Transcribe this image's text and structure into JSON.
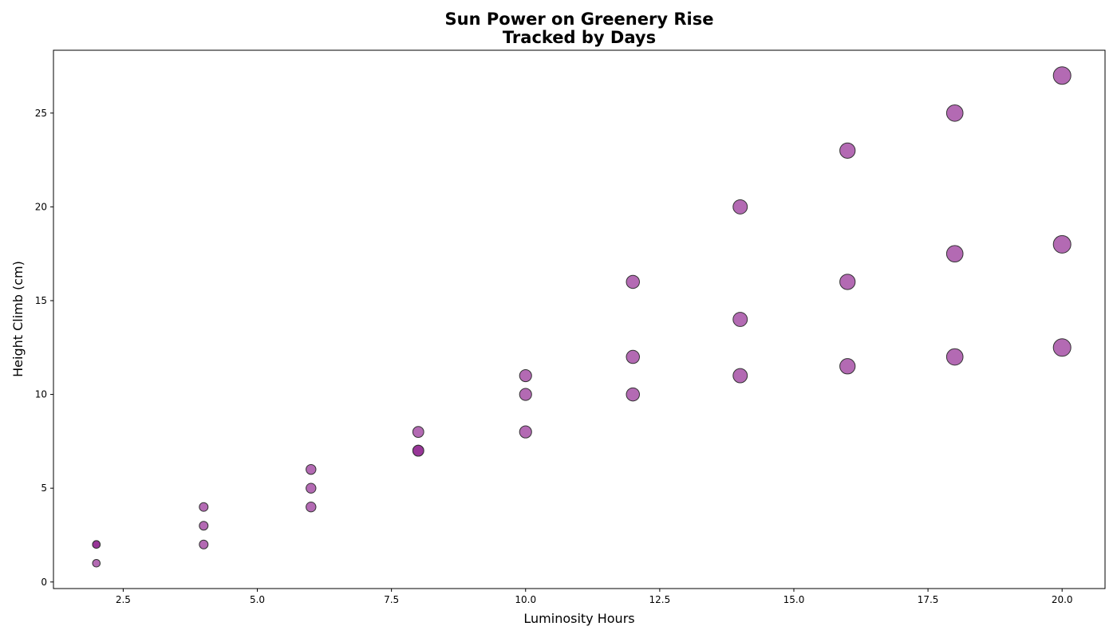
{
  "chart_data": {
    "type": "scatter",
    "title_lines": [
      "Sun Power on Greenery Rise",
      "Tracked by Days"
    ],
    "xlabel": "Luminosity Hours",
    "ylabel": "Height Climb (cm)",
    "xlim": [
      1.2,
      20.8
    ],
    "ylim": [
      -0.35,
      28.35
    ],
    "xticks": [
      2.5,
      5.0,
      7.5,
      10.0,
      12.5,
      15.0,
      17.5,
      20.0
    ],
    "xtick_labels": [
      "2.5",
      "5.0",
      "7.5",
      "10.0",
      "12.5",
      "15.0",
      "17.5",
      "20.0"
    ],
    "yticks": [
      0,
      5,
      10,
      15,
      20,
      25
    ],
    "ytick_labels": [
      "0",
      "5",
      "10",
      "15",
      "20",
      "25"
    ],
    "grid": false,
    "marker_color": "#8B1A8B",
    "marker_alpha": 0.65,
    "edge_color": "#333333",
    "points": [
      {
        "x": 2,
        "y": 1
      },
      {
        "x": 2,
        "y": 2
      },
      {
        "x": 2,
        "y": 2
      },
      {
        "x": 4,
        "y": 2
      },
      {
        "x": 4,
        "y": 3
      },
      {
        "x": 4,
        "y": 4
      },
      {
        "x": 6,
        "y": 4
      },
      {
        "x": 6,
        "y": 5
      },
      {
        "x": 6,
        "y": 6
      },
      {
        "x": 8,
        "y": 7
      },
      {
        "x": 8,
        "y": 7
      },
      {
        "x": 8,
        "y": 8
      },
      {
        "x": 10,
        "y": 8
      },
      {
        "x": 10,
        "y": 10
      },
      {
        "x": 10,
        "y": 11
      },
      {
        "x": 12,
        "y": 10
      },
      {
        "x": 12,
        "y": 12
      },
      {
        "x": 12,
        "y": 16
      },
      {
        "x": 14,
        "y": 11
      },
      {
        "x": 14,
        "y": 14
      },
      {
        "x": 14,
        "y": 20
      },
      {
        "x": 16,
        "y": 11.5
      },
      {
        "x": 16,
        "y": 16
      },
      {
        "x": 16,
        "y": 23
      },
      {
        "x": 18,
        "y": 12
      },
      {
        "x": 18,
        "y": 17.5
      },
      {
        "x": 18,
        "y": 25
      },
      {
        "x": 20,
        "y": 12.5
      },
      {
        "x": 20,
        "y": 18
      },
      {
        "x": 20,
        "y": 27
      }
    ]
  }
}
